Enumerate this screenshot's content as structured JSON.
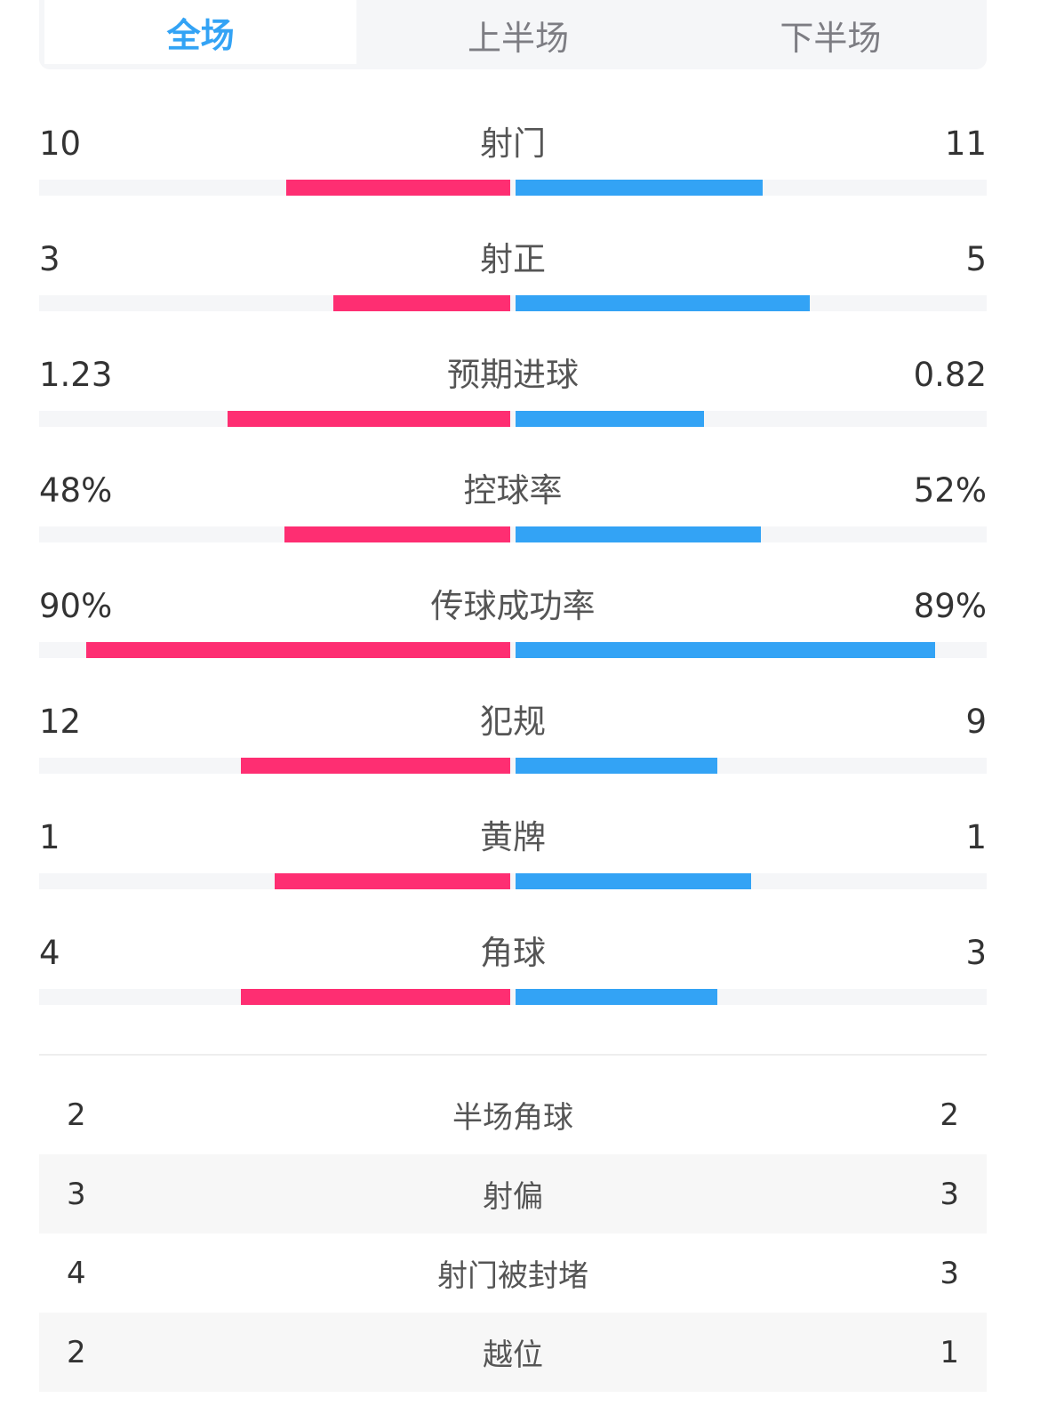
{
  "tabs": [
    {
      "label": "全场",
      "active": true
    },
    {
      "label": "上半场",
      "active": false
    },
    {
      "label": "下半场",
      "active": false
    }
  ],
  "colors": {
    "home": "#fe2e72",
    "away": "#33a3f5",
    "active_tab": "#33a3f5"
  },
  "stats": [
    {
      "label": "射门",
      "left": "10",
      "right": "11",
      "left_share": 0.476,
      "right_share": 0.524
    },
    {
      "label": "射正",
      "left": "3",
      "right": "5",
      "left_share": 0.375,
      "right_share": 0.625
    },
    {
      "label": "预期进球",
      "left": "1.23",
      "right": "0.82",
      "left_share": 0.6,
      "right_share": 0.4
    },
    {
      "label": "控球率",
      "left": "48%",
      "right": "52%",
      "left_share": 0.48,
      "right_share": 0.52
    },
    {
      "label": "传球成功率",
      "left": "90%",
      "right": "89%",
      "left_share": 0.9,
      "right_share": 0.89
    },
    {
      "label": "犯规",
      "left": "12",
      "right": "9",
      "left_share": 0.571,
      "right_share": 0.429
    },
    {
      "label": "黄牌",
      "left": "1",
      "right": "1",
      "left_share": 0.5,
      "right_share": 0.5
    },
    {
      "label": "角球",
      "left": "4",
      "right": "3",
      "left_share": 0.571,
      "right_share": 0.429
    }
  ],
  "table": [
    {
      "label": "半场角球",
      "left": "2",
      "right": "2"
    },
    {
      "label": "射偏",
      "left": "3",
      "right": "3"
    },
    {
      "label": "射门被封堵",
      "left": "4",
      "right": "3"
    },
    {
      "label": "越位",
      "left": "2",
      "right": "1"
    }
  ]
}
